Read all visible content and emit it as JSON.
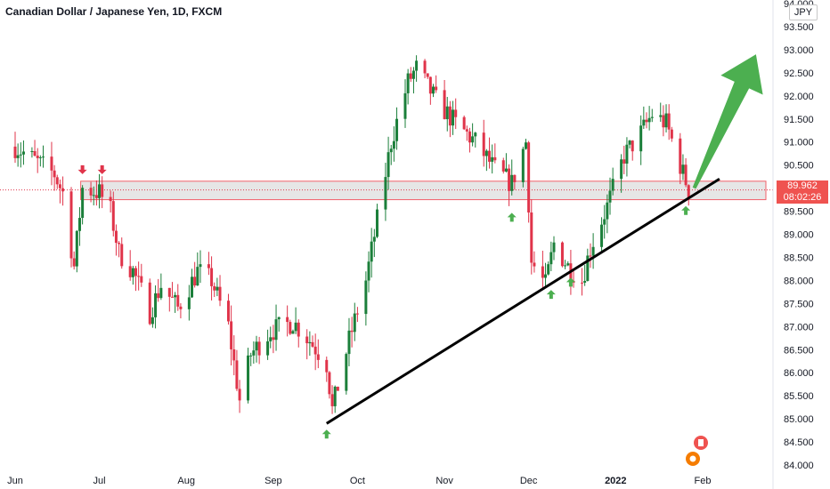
{
  "header": {
    "title": "Canadian Dollar / Japanese Yen, 1D, FXCM",
    "currency": "JPY"
  },
  "last_price": {
    "value": "89.962",
    "countdown": "08:02:26"
  },
  "colors": {
    "up": "#1b7f3a",
    "down": "#e0344a",
    "zone_fill": "#e6e6e6",
    "zone_border": "#f0606a",
    "arrow_green": "#4caf50",
    "arrow_red": "#e0344a",
    "trendline": "#000000"
  },
  "chart_data": {
    "type": "candlestick",
    "instrument": "Canadian Dollar / Japanese Yen, 1D, FXCM",
    "y_ticks": [
      "94.000",
      "93.500",
      "93.000",
      "92.500",
      "92.000",
      "91.500",
      "91.000",
      "90.500",
      "90.000",
      "89.500",
      "89.000",
      "88.500",
      "88.000",
      "87.500",
      "87.000",
      "86.500",
      "86.000",
      "85.500",
      "85.000",
      "84.500",
      "84.000"
    ],
    "x_ticks": [
      "Jun",
      "Jul",
      "Aug",
      "Sep",
      "Oct",
      "Nov",
      "Dec",
      "2022",
      "Feb"
    ],
    "ylim": [
      84.0,
      94.0
    ],
    "close_path": [
      [
        "2021-06-01",
        90.9
      ],
      [
        "2021-06-08",
        90.6
      ],
      [
        "2021-06-15",
        90.3
      ],
      [
        "2021-06-18",
        89.9
      ],
      [
        "2021-06-22",
        88.3
      ],
      [
        "2021-06-25",
        90.0
      ],
      [
        "2021-07-01",
        89.9
      ],
      [
        "2021-07-05",
        89.5
      ],
      [
        "2021-07-08",
        88.6
      ],
      [
        "2021-07-13",
        88.2
      ],
      [
        "2021-07-19",
        87.3
      ],
      [
        "2021-07-23",
        87.9
      ],
      [
        "2021-07-29",
        87.4
      ],
      [
        "2021-08-05",
        88.2
      ],
      [
        "2021-08-10",
        88.0
      ],
      [
        "2021-08-16",
        87.0
      ],
      [
        "2021-08-20",
        85.4
      ],
      [
        "2021-08-24",
        86.4
      ],
      [
        "2021-08-31",
        86.9
      ],
      [
        "2021-09-08",
        87.1
      ],
      [
        "2021-09-14",
        86.7
      ],
      [
        "2021-09-20",
        86.2
      ],
      [
        "2021-09-22",
        85.2
      ],
      [
        "2021-09-28",
        86.7
      ],
      [
        "2021-10-04",
        88.0
      ],
      [
        "2021-10-08",
        89.3
      ],
      [
        "2021-10-13",
        91.0
      ],
      [
        "2021-10-19",
        92.3
      ],
      [
        "2021-10-22",
        92.6
      ],
      [
        "2021-10-29",
        91.9
      ],
      [
        "2021-11-05",
        91.4
      ],
      [
        "2021-11-12",
        91.0
      ],
      [
        "2021-11-19",
        90.4
      ],
      [
        "2021-11-25",
        90.1
      ],
      [
        "2021-11-30",
        91.0
      ],
      [
        "2021-12-02",
        88.4
      ],
      [
        "2021-12-07",
        87.9
      ],
      [
        "2021-12-10",
        88.8
      ],
      [
        "2021-12-15",
        88.3
      ],
      [
        "2021-12-20",
        88.0
      ],
      [
        "2021-12-23",
        88.7
      ],
      [
        "2021-12-29",
        89.6
      ],
      [
        "2022-01-04",
        90.7
      ],
      [
        "2022-01-10",
        91.2
      ],
      [
        "2022-01-14",
        91.6
      ],
      [
        "2022-01-19",
        91.4
      ],
      [
        "2022-01-24",
        90.5
      ],
      [
        "2022-01-27",
        89.962
      ]
    ],
    "resistance_zone": [
      89.75,
      90.15
    ],
    "trendline": {
      "start": [
        "2021-09-20",
        84.9
      ],
      "end": [
        "2022-02-07",
        90.2
      ]
    },
    "markers_up": [
      "2021-09-20",
      "2021-11-25",
      "2021-12-09",
      "2021-12-16",
      "2022-01-26"
    ],
    "markers_down": [
      "2021-06-25",
      "2021-07-02"
    ],
    "grid": false,
    "legend": "none"
  }
}
